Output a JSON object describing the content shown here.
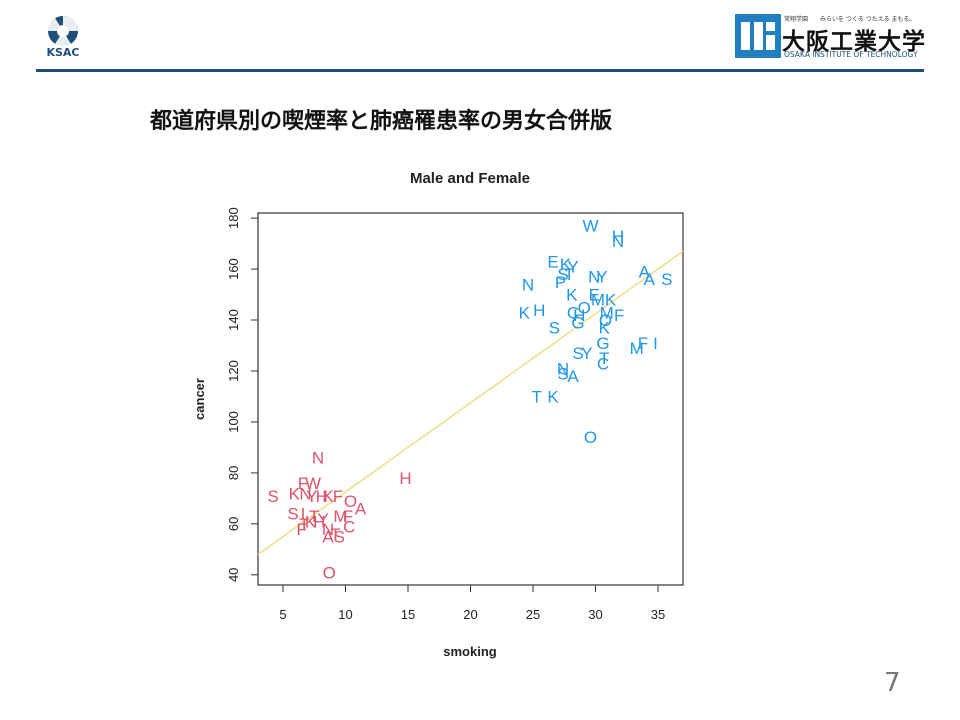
{
  "header": {
    "left_logo_text": "KSAC",
    "right_logo_small": "常翔学園　　みらいを つくる つたえる まもる。",
    "right_logo_name": "大阪工業大学",
    "right_logo_en": "OSAKA INSTITUTE OF TECHNOLOGY"
  },
  "slide": {
    "title": "都道府県別の喫煙率と肺癌罹患率の男女合併版",
    "page_number": "7"
  },
  "colors": {
    "female": "#df536b",
    "male": "#2297e6",
    "fit_line": "#f0e08a",
    "brand": "#1f4e79"
  },
  "chart_data": {
    "type": "scatter",
    "title": "Male and Female",
    "xlabel": "smoking",
    "ylabel": "cancer",
    "xlim": [
      3,
      37
    ],
    "ylim": [
      36,
      182
    ],
    "xticks": [
      5,
      10,
      15,
      20,
      25,
      30,
      35
    ],
    "yticks": [
      40,
      60,
      80,
      100,
      120,
      140,
      160,
      180
    ],
    "grid": false,
    "legend": "none",
    "fit_line": [
      [
        3,
        48
      ],
      [
        37,
        167
      ]
    ],
    "series": [
      {
        "group": "female",
        "points": [
          {
            "label": "N",
            "x": 7.8,
            "y": 86
          },
          {
            "label": "H",
            "x": 14.8,
            "y": 78
          },
          {
            "label": "F",
            "x": 6.6,
            "y": 76
          },
          {
            "label": "W",
            "x": 7.4,
            "y": 76
          },
          {
            "label": "S",
            "x": 4.2,
            "y": 71
          },
          {
            "label": "K",
            "x": 5.9,
            "y": 72
          },
          {
            "label": "N",
            "x": 6.8,
            "y": 72
          },
          {
            "label": "Y",
            "x": 7.3,
            "y": 71
          },
          {
            "label": "H",
            "x": 8.1,
            "y": 71
          },
          {
            "label": "K",
            "x": 8.6,
            "y": 71
          },
          {
            "label": "F",
            "x": 9.4,
            "y": 71
          },
          {
            "label": "O",
            "x": 10.4,
            "y": 69
          },
          {
            "label": "A",
            "x": 11.2,
            "y": 66
          },
          {
            "label": "S",
            "x": 5.8,
            "y": 64
          },
          {
            "label": "I",
            "x": 6.6,
            "y": 64
          },
          {
            "label": "T",
            "x": 7.5,
            "y": 63
          },
          {
            "label": "Y",
            "x": 8.2,
            "y": 62
          },
          {
            "label": "M",
            "x": 9.6,
            "y": 63
          },
          {
            "label": "F",
            "x": 10.2,
            "y": 63
          },
          {
            "label": "T",
            "x": 6.7,
            "y": 60
          },
          {
            "label": "K",
            "x": 7.2,
            "y": 61
          },
          {
            "label": "H",
            "x": 7.9,
            "y": 61
          },
          {
            "label": "F",
            "x": 6.5,
            "y": 58
          },
          {
            "label": "N",
            "x": 8.6,
            "y": 58
          },
          {
            "label": "C",
            "x": 10.3,
            "y": 59
          },
          {
            "label": "A",
            "x": 8.6,
            "y": 55
          },
          {
            "label": "S",
            "x": 9.5,
            "y": 55
          },
          {
            "label": "T",
            "x": 9.2,
            "y": 56
          },
          {
            "label": "O",
            "x": 8.7,
            "y": 41
          }
        ]
      },
      {
        "group": "male",
        "points": [
          {
            "label": "W",
            "x": 29.6,
            "y": 177
          },
          {
            "label": "H",
            "x": 31.8,
            "y": 173
          },
          {
            "label": "N",
            "x": 31.8,
            "y": 171
          },
          {
            "label": "E",
            "x": 26.6,
            "y": 163
          },
          {
            "label": "K",
            "x": 27.6,
            "y": 162
          },
          {
            "label": "Y",
            "x": 28.2,
            "y": 161
          },
          {
            "label": "S",
            "x": 27.4,
            "y": 158
          },
          {
            "label": "T",
            "x": 27.9,
            "y": 158
          },
          {
            "label": "A",
            "x": 33.9,
            "y": 159
          },
          {
            "label": "P",
            "x": 27.2,
            "y": 155
          },
          {
            "label": "N",
            "x": 24.6,
            "y": 154
          },
          {
            "label": "N",
            "x": 29.9,
            "y": 157
          },
          {
            "label": "Y",
            "x": 30.5,
            "y": 157
          },
          {
            "label": "A",
            "x": 34.3,
            "y": 156
          },
          {
            "label": "S",
            "x": 35.7,
            "y": 156
          },
          {
            "label": "K",
            "x": 28.1,
            "y": 150
          },
          {
            "label": "E",
            "x": 29.9,
            "y": 150
          },
          {
            "label": "M",
            "x": 30.2,
            "y": 148
          },
          {
            "label": "K",
            "x": 31.2,
            "y": 148
          },
          {
            "label": "K",
            "x": 24.3,
            "y": 143
          },
          {
            "label": "H",
            "x": 25.5,
            "y": 144
          },
          {
            "label": "O",
            "x": 29.1,
            "y": 145
          },
          {
            "label": "C",
            "x": 28.2,
            "y": 143
          },
          {
            "label": "H",
            "x": 28.7,
            "y": 142
          },
          {
            "label": "M",
            "x": 30.9,
            "y": 143
          },
          {
            "label": "F",
            "x": 31.9,
            "y": 142
          },
          {
            "label": "S",
            "x": 26.7,
            "y": 137
          },
          {
            "label": "G",
            "x": 28.6,
            "y": 139
          },
          {
            "label": "O",
            "x": 30.8,
            "y": 140
          },
          {
            "label": "K",
            "x": 30.7,
            "y": 137
          },
          {
            "label": "G",
            "x": 30.6,
            "y": 131
          },
          {
            "label": "F",
            "x": 33.8,
            "y": 131
          },
          {
            "label": "I",
            "x": 34.8,
            "y": 131
          },
          {
            "label": "M",
            "x": 33.3,
            "y": 129
          },
          {
            "label": "S",
            "x": 28.6,
            "y": 127
          },
          {
            "label": "Y",
            "x": 29.3,
            "y": 127
          },
          {
            "label": "N",
            "x": 27.4,
            "y": 121
          },
          {
            "label": "C",
            "x": 30.6,
            "y": 123
          },
          {
            "label": "T",
            "x": 30.7,
            "y": 125
          },
          {
            "label": "S",
            "x": 27.4,
            "y": 119
          },
          {
            "label": "A",
            "x": 28.2,
            "y": 118
          },
          {
            "label": "T",
            "x": 25.3,
            "y": 110
          },
          {
            "label": "K",
            "x": 26.6,
            "y": 110
          },
          {
            "label": "O",
            "x": 29.6,
            "y": 94
          }
        ]
      }
    ]
  }
}
